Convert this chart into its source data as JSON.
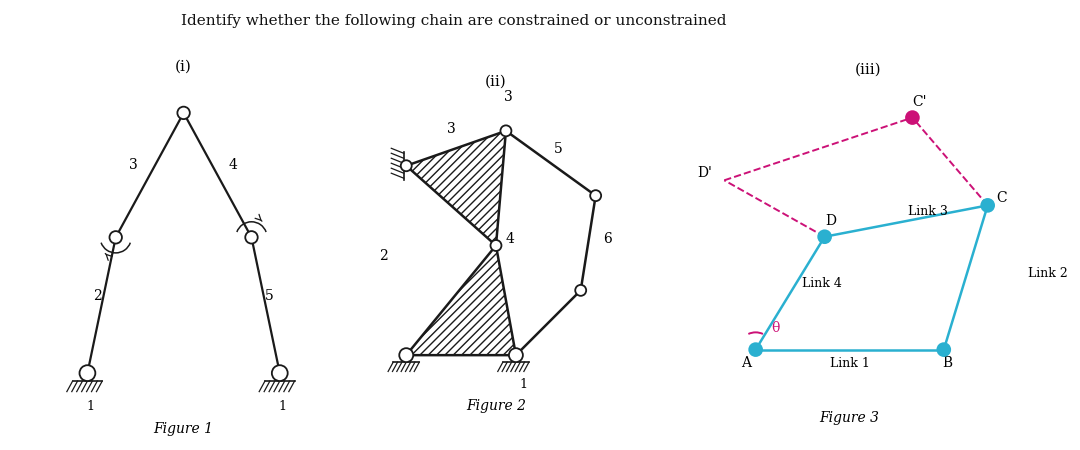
{
  "title": "Identify whether the following chain are constrained or unconstrained",
  "subtitle_i": "(i)",
  "subtitle_ii": "(ii)",
  "subtitle_iii": "(iii)",
  "fig_label_1": "Figure 1",
  "fig_label_2": "Figure 2",
  "fig_label_3": "Figure 3",
  "bg_color": "#ffffff",
  "link_color": "#1a1a1a",
  "cyan_color": "#2ab0d0",
  "pink_color": "#cc1177"
}
